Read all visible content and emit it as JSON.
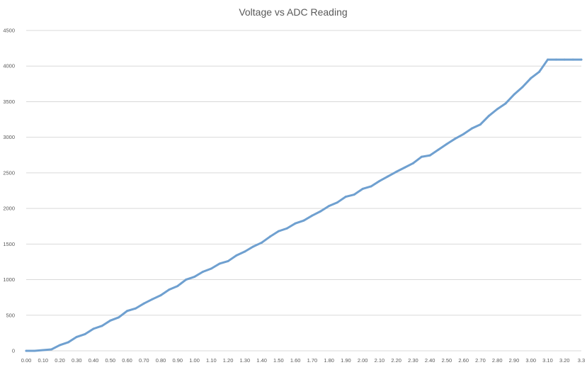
{
  "chart_data": {
    "type": "line",
    "title": "Voltage vs ADC Reading",
    "xlabel": "",
    "ylabel": "",
    "x": [
      0.0,
      0.05,
      0.1,
      0.15,
      0.2,
      0.25,
      0.3,
      0.35,
      0.4,
      0.45,
      0.5,
      0.55,
      0.6,
      0.65,
      0.7,
      0.75,
      0.8,
      0.85,
      0.9,
      0.95,
      1.0,
      1.05,
      1.1,
      1.15,
      1.2,
      1.25,
      1.3,
      1.35,
      1.4,
      1.45,
      1.5,
      1.55,
      1.6,
      1.65,
      1.7,
      1.75,
      1.8,
      1.85,
      1.9,
      1.95,
      2.0,
      2.05,
      2.1,
      2.15,
      2.2,
      2.25,
      2.3,
      2.35,
      2.4,
      2.45,
      2.5,
      2.55,
      2.6,
      2.65,
      2.7,
      2.75,
      2.8,
      2.85,
      2.9,
      2.95,
      3.0,
      3.05,
      3.1,
      3.15,
      3.2,
      3.25,
      3.3
    ],
    "series": [
      {
        "values": [
          0,
          0,
          10,
          20,
          80,
          120,
          195,
          235,
          310,
          350,
          425,
          470,
          560,
          595,
          665,
          725,
          780,
          860,
          910,
          1000,
          1040,
          1110,
          1155,
          1225,
          1260,
          1340,
          1395,
          1465,
          1520,
          1605,
          1680,
          1720,
          1790,
          1830,
          1900,
          1960,
          2035,
          2085,
          2165,
          2195,
          2275,
          2310,
          2385,
          2450,
          2515,
          2575,
          2635,
          2725,
          2745,
          2825,
          2905,
          2980,
          3045,
          3125,
          3180,
          3300,
          3395,
          3475,
          3600,
          3705,
          3830,
          3920,
          4090,
          4090,
          4090,
          4090,
          4090
        ]
      }
    ],
    "xticks": [
      "0.00",
      "0.10",
      "0.20",
      "0.30",
      "0.40",
      "0.50",
      "0.60",
      "0.70",
      "0.80",
      "0.90",
      "1.00",
      "1.10",
      "1.20",
      "1.30",
      "1.40",
      "1.50",
      "1.60",
      "1.70",
      "1.80",
      "1.90",
      "2.00",
      "2.10",
      "2.20",
      "2.30",
      "2.40",
      "2.50",
      "2.60",
      "2.70",
      "2.80",
      "2.90",
      "3.00",
      "3.10",
      "3.20",
      "3.3"
    ],
    "yticks": [
      "0",
      "500",
      "1000",
      "1500",
      "2000",
      "2500",
      "3000",
      "3500",
      "4000",
      "4500"
    ],
    "xlim": [
      0,
      3.3
    ],
    "ylim": [
      0,
      4500
    ],
    "grid": "horizontal",
    "legend": "none",
    "line_color": "#6fa0d0"
  }
}
